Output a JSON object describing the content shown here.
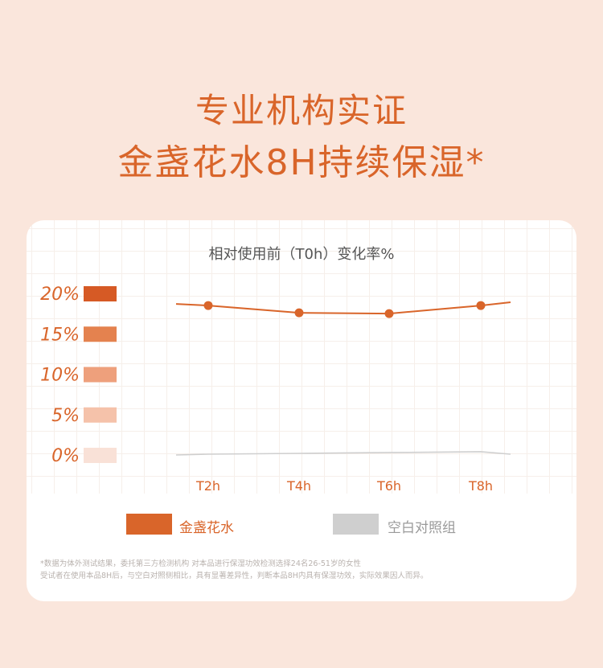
{
  "headline": {
    "line1": "专业机构实证",
    "line2": "金盏花水8H持续保湿*"
  },
  "colors": {
    "background": "#fae6dc",
    "accent": "#d9652a",
    "control": "#cfcfcf"
  },
  "chart_data": {
    "type": "line",
    "title": "相对使用前（T0h）变化率%",
    "categories": [
      "T2h",
      "T4h",
      "T6h",
      "T8h"
    ],
    "ylim": [
      0,
      20
    ],
    "y_ticks": [
      {
        "label": "20%",
        "value": 20,
        "color": "#d65a25"
      },
      {
        "label": "15%",
        "value": 15,
        "color": "#e4824f"
      },
      {
        "label": "10%",
        "value": 10,
        "color": "#eea07c"
      },
      {
        "label": "5%",
        "value": 5,
        "color": "#f5c2aa"
      },
      {
        "label": "0%",
        "value": 0,
        "color": "#f9e1d7"
      }
    ],
    "series": [
      {
        "name": "金盏花水",
        "color": "#d9652a",
        "values": [
          18.5,
          17.6,
          17.5,
          18.5
        ],
        "start": 18.7,
        "end": 18.9
      },
      {
        "name": "空白对照组",
        "color": "#cfcfcf",
        "values": [
          0.1,
          0.2,
          0.3,
          0.4
        ],
        "start": 0.0,
        "end": 0.1
      }
    ],
    "grid": true,
    "legend": "bottom"
  },
  "footnote": {
    "line1": "*数据为体外测试结果，委托第三方检测机构 对本品进行保湿功效检测选择24名26-51岁的女性",
    "line2": "受试者在使用本品8H后，与空白对照侧相比，具有显著差异性，判断本品8H内具有保湿功效，实际效果因人而异。"
  }
}
